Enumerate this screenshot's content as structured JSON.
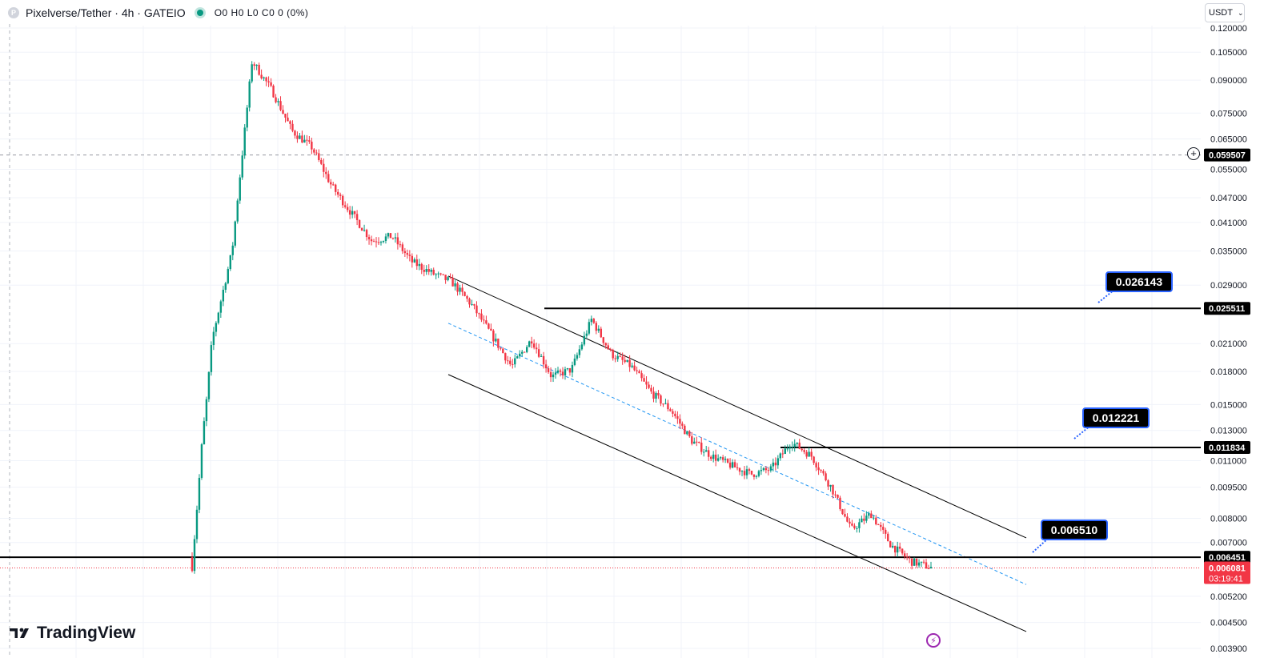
{
  "header": {
    "logo_letter": "P",
    "title": "Pixelverse/Tether · 4h · GATEIO",
    "ohlc": "O0 H0 L0 C0 0 (0%)"
  },
  "currency_selector": {
    "label": "USDT"
  },
  "branding": {
    "name": "TradingView"
  },
  "chart_data": {
    "type": "line",
    "title": "Pixelverse/Tether · 4h · GATEIO",
    "y_scale": "log",
    "ylim": [
      0.0038,
      0.124
    ],
    "y_ticks": [
      "0.120000",
      "0.105000",
      "0.090000",
      "0.075000",
      "0.065000",
      "0.055000",
      "0.047000",
      "0.041000",
      "0.035000",
      "0.029000",
      "0.021000",
      "0.018000",
      "0.015000",
      "0.013000",
      "0.011000",
      "0.009500",
      "0.008000",
      "0.007000",
      "0.005200",
      "0.004500",
      "0.003900"
    ],
    "price_axis_labels": [
      {
        "value": "0.059507",
        "style": "dark"
      },
      {
        "value": "0.025511",
        "style": "dark"
      },
      {
        "value": "0.011834",
        "style": "dark"
      },
      {
        "value": "0.006451",
        "style": "dark"
      },
      {
        "value": "0.006081",
        "style": "red",
        "countdown": "03:19:41"
      }
    ],
    "callouts": [
      "0.026143",
      "0.012221",
      "0.006510"
    ],
    "price_path": [
      0.00645,
      0.0215,
      0.035,
      0.1,
      0.085,
      0.068,
      0.062,
      0.05,
      0.043,
      0.037,
      0.038,
      0.033,
      0.031,
      0.0295,
      0.026,
      0.022,
      0.0185,
      0.0215,
      0.0175,
      0.0182,
      0.024,
      0.0198,
      0.0185,
      0.016,
      0.0145,
      0.0123,
      0.0113,
      0.0107,
      0.0102,
      0.0105,
      0.0122,
      0.0113,
      0.0095,
      0.0075,
      0.0082,
      0.0069,
      0.0063,
      0.0061
    ],
    "horizontal_levels": [
      0.025511,
      0.011834,
      0.006451
    ],
    "current_price": 0.006081,
    "crosshair_price": 0.059507,
    "grid": true,
    "colors": {
      "up": "#089981",
      "down": "#f23645",
      "line": "#000000",
      "dashed": "#2196f3",
      "current": "#f23645",
      "label_bg": "#000000",
      "callout_border": "#2962ff"
    }
  }
}
